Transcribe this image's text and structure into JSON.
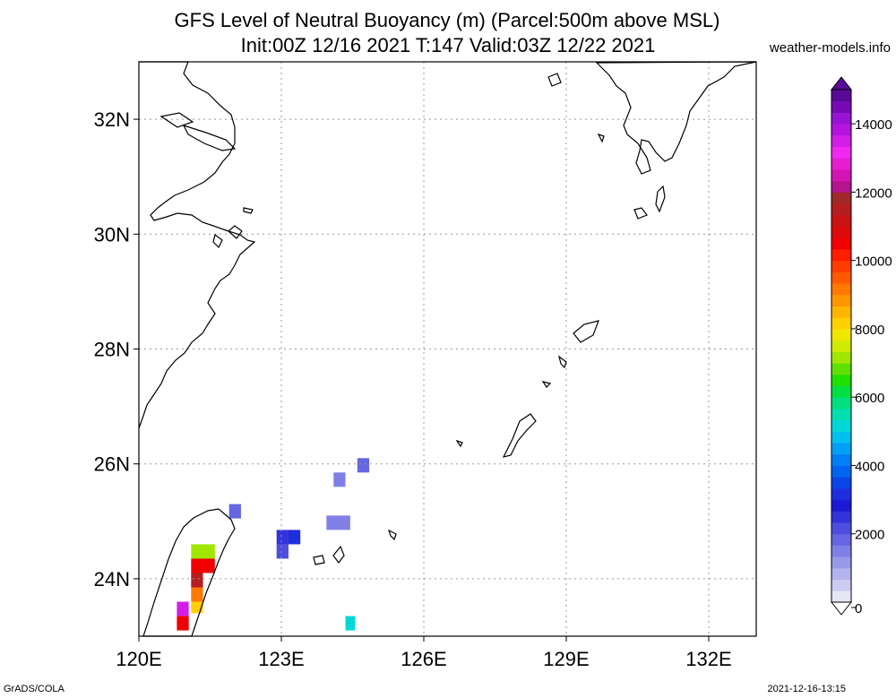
{
  "title": {
    "line1": "GFS Level of Neutral Buoyancy (m) (Parcel:500m above MSL)",
    "line2": "Init:00Z 12/16 2021 T:147 Valid:03Z 12/22 2021"
  },
  "site": "weather-models.info",
  "footer": {
    "left": "GrADS/COLA",
    "right": "2021-12-16-13:15"
  },
  "map": {
    "lon_range": [
      120,
      133
    ],
    "lat_range": [
      23,
      33
    ],
    "lon_ticks": [
      {
        "value": 120,
        "label": "120E"
      },
      {
        "value": 123,
        "label": "123E"
      },
      {
        "value": 126,
        "label": "126E"
      },
      {
        "value": 129,
        "label": "129E"
      },
      {
        "value": 132,
        "label": "132E"
      }
    ],
    "lat_ticks": [
      {
        "value": 24,
        "label": "24N"
      },
      {
        "value": 26,
        "label": "26N"
      },
      {
        "value": 28,
        "label": "28N"
      },
      {
        "value": 30,
        "label": "30N"
      },
      {
        "value": 32,
        "label": "32N"
      }
    ]
  },
  "colorbar": {
    "unit": "m",
    "labels": [
      {
        "value": 0,
        "label": "0"
      },
      {
        "value": 2000,
        "label": "2000"
      },
      {
        "value": 4000,
        "label": "4000"
      },
      {
        "value": 6000,
        "label": "6000"
      },
      {
        "value": 8000,
        "label": "8000"
      },
      {
        "value": 10000,
        "label": "10000"
      },
      {
        "value": 12000,
        "label": "12000"
      },
      {
        "value": 14000,
        "label": "14000"
      }
    ],
    "colors": [
      "#e6e6f5",
      "#ccccf2",
      "#b3b3ee",
      "#9999ea",
      "#8080e6",
      "#6666e2",
      "#4d4dde",
      "#3333da",
      "#1a1ad6",
      "#1e2edc",
      "#0a46e6",
      "#0064f0",
      "#0080f5",
      "#00a0f5",
      "#00c0f0",
      "#00d8d8",
      "#00e0b0",
      "#00e080",
      "#00e040",
      "#20e000",
      "#60e000",
      "#a0e600",
      "#d0ea00",
      "#f0e600",
      "#ffd000",
      "#ffb400",
      "#ff9600",
      "#ff7800",
      "#ff5a00",
      "#ff3c00",
      "#ff1e00",
      "#f00000",
      "#dc0a0a",
      "#c81414",
      "#b41e1e",
      "#a02828",
      "#b4148c",
      "#d214b4",
      "#e61ed2",
      "#f028f0",
      "#d21ee6",
      "#b414dc",
      "#9614d2",
      "#780ab4",
      "#5a0a96"
    ]
  },
  "cells": [
    {
      "lon": 121.9,
      "lat": 25.05,
      "w": 0.25,
      "h": 0.25,
      "value": 1800
    },
    {
      "lon": 124.1,
      "lat": 25.6,
      "w": 0.25,
      "h": 0.25,
      "value": 1600
    },
    {
      "lon": 124.6,
      "lat": 25.85,
      "w": 0.25,
      "h": 0.25,
      "value": 1700
    },
    {
      "lon": 123.95,
      "lat": 24.85,
      "w": 0.5,
      "h": 0.25,
      "value": 1500
    },
    {
      "lon": 122.9,
      "lat": 24.6,
      "w": 0.25,
      "h": 0.25,
      "value": 2400
    },
    {
      "lon": 123.15,
      "lat": 24.6,
      "w": 0.25,
      "h": 0.25,
      "value": 3000
    },
    {
      "lon": 122.9,
      "lat": 24.35,
      "w": 0.25,
      "h": 0.25,
      "value": 2200
    },
    {
      "lon": 121.1,
      "lat": 24.35,
      "w": 0.5,
      "h": 0.25,
      "value": 7000
    },
    {
      "lon": 121.1,
      "lat": 24.1,
      "w": 0.5,
      "h": 0.25,
      "value": 10500
    },
    {
      "lon": 121.1,
      "lat": 23.85,
      "w": 0.25,
      "h": 0.25,
      "value": 11500
    },
    {
      "lon": 121.1,
      "lat": 23.6,
      "w": 0.25,
      "h": 0.25,
      "value": 9000
    },
    {
      "lon": 121.1,
      "lat": 23.4,
      "w": 0.25,
      "h": 0.2,
      "value": 8000
    },
    {
      "lon": 120.8,
      "lat": 23.35,
      "w": 0.25,
      "h": 0.25,
      "value": 13500
    },
    {
      "lon": 120.8,
      "lat": 23.1,
      "w": 0.25,
      "h": 0.25,
      "value": 10500
    },
    {
      "lon": 124.35,
      "lat": 23.1,
      "w": 0.2,
      "h": 0.25,
      "value": 5000
    }
  ]
}
